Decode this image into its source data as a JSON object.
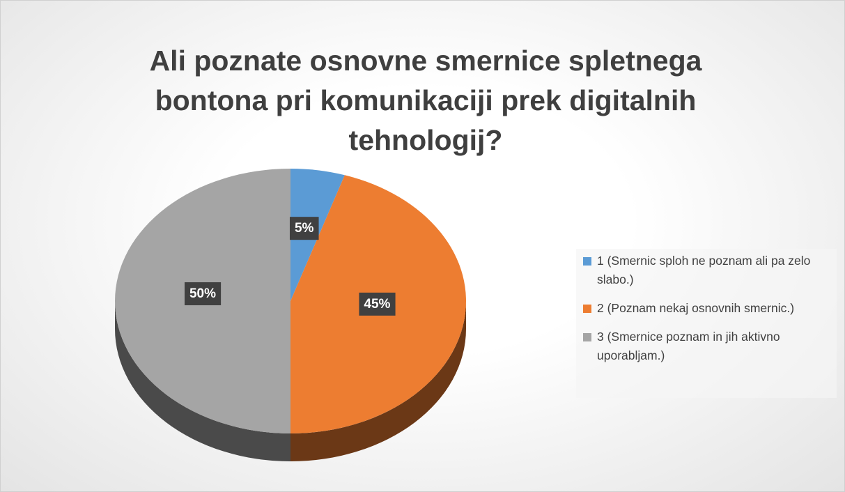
{
  "chart_data": {
    "type": "pie",
    "title": "Ali poznate osnovne smernice spletnega bontona pri komunikaciji prek digitalnih tehnologij?",
    "categories": [
      "1 (Smernic sploh ne poznam ali pa zelo slabo.)",
      "2 (Poznam nekaj osnovnih smernic.)",
      "3 (Smernice poznam in jih aktivno uporabljam.)"
    ],
    "values": [
      5,
      45,
      50
    ],
    "value_labels": [
      "5%",
      "45%",
      "50%"
    ],
    "colors": [
      "#5b9bd5",
      "#ed7d31",
      "#a5a5a5"
    ],
    "legend": "right"
  }
}
